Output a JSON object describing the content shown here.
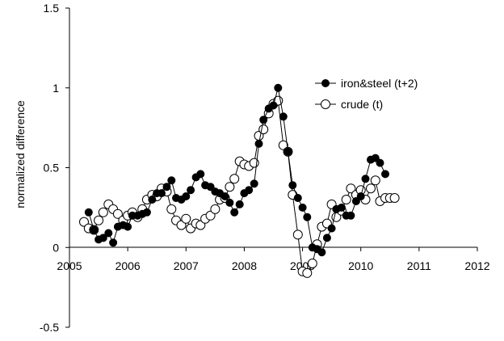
{
  "chart_data": {
    "type": "line",
    "title": "",
    "xlabel": "",
    "ylabel": "normalized difference",
    "xlim": [
      2005,
      2012
    ],
    "ylim": [
      -0.5,
      1.5
    ],
    "x_ticks": [
      "2005",
      "2006",
      "2007",
      "2008",
      "2009",
      "2010",
      "2011",
      "2012"
    ],
    "y_ticks": [
      "-0.5",
      "0",
      "0.5",
      "1",
      "1.5"
    ],
    "grid": false,
    "legend_position": "top-right",
    "colors": {
      "axis": "#000000",
      "series_line": "#000000",
      "marker_fill_filled": "#000000",
      "marker_fill_open": "#ffffff"
    },
    "series": [
      {
        "name": "iron&steel (t+2)",
        "marker": "filled-circle",
        "x": [
          2005.33,
          2005.42,
          2005.5,
          2005.58,
          2005.67,
          2005.75,
          2005.83,
          2005.92,
          2006.0,
          2006.08,
          2006.17,
          2006.25,
          2006.33,
          2006.42,
          2006.5,
          2006.58,
          2006.67,
          2006.75,
          2006.83,
          2006.92,
          2007.0,
          2007.08,
          2007.17,
          2007.25,
          2007.33,
          2007.42,
          2007.5,
          2007.58,
          2007.67,
          2007.75,
          2007.83,
          2007.92,
          2008.0,
          2008.08,
          2008.17,
          2008.25,
          2008.33,
          2008.42,
          2008.5,
          2008.58,
          2008.67,
          2008.75,
          2008.83,
          2008.92,
          2009.0,
          2009.08,
          2009.17,
          2009.25,
          2009.33,
          2009.42,
          2009.5,
          2009.58,
          2009.67,
          2009.75,
          2009.83,
          2009.92,
          2010.0,
          2010.08,
          2010.17,
          2010.25,
          2010.33,
          2010.42
        ],
        "y": [
          0.22,
          0.11,
          0.05,
          0.06,
          0.09,
          0.03,
          0.13,
          0.14,
          0.13,
          0.2,
          0.2,
          0.21,
          0.22,
          0.3,
          0.34,
          0.34,
          0.38,
          0.42,
          0.31,
          0.3,
          0.32,
          0.36,
          0.44,
          0.46,
          0.39,
          0.38,
          0.35,
          0.34,
          0.32,
          0.28,
          0.22,
          0.27,
          0.34,
          0.36,
          0.4,
          0.65,
          0.8,
          0.87,
          0.89,
          1.0,
          0.82,
          0.6,
          0.39,
          0.31,
          0.25,
          0.19,
          0.0,
          -0.01,
          -0.03,
          0.06,
          0.12,
          0.24,
          0.25,
          0.2,
          0.2,
          0.29,
          0.32,
          0.43,
          0.55,
          0.56,
          0.53,
          0.46
        ]
      },
      {
        "name": "crude (t)",
        "marker": "open-circle",
        "x": [
          2005.25,
          2005.33,
          2005.42,
          2005.5,
          2005.58,
          2005.67,
          2005.75,
          2005.83,
          2005.92,
          2006.0,
          2006.08,
          2006.17,
          2006.25,
          2006.33,
          2006.42,
          2006.5,
          2006.58,
          2006.67,
          2006.75,
          2006.83,
          2006.92,
          2007.0,
          2007.08,
          2007.17,
          2007.25,
          2007.33,
          2007.42,
          2007.5,
          2007.58,
          2007.67,
          2007.75,
          2007.83,
          2007.92,
          2008.0,
          2008.08,
          2008.17,
          2008.25,
          2008.33,
          2008.42,
          2008.5,
          2008.58,
          2008.67,
          2008.75,
          2008.83,
          2008.92,
          2009.0,
          2009.08,
          2009.17,
          2009.25,
          2009.33,
          2009.42,
          2009.5,
          2009.58,
          2009.67,
          2009.75,
          2009.83,
          2009.92,
          2010.0,
          2010.08,
          2010.17,
          2010.25,
          2010.33,
          2010.42,
          2010.5,
          2010.58
        ],
        "y": [
          0.16,
          0.12,
          0.11,
          0.17,
          0.22,
          0.27,
          0.24,
          0.21,
          0.17,
          0.2,
          0.22,
          0.19,
          0.24,
          0.3,
          0.33,
          0.32,
          0.37,
          0.35,
          0.24,
          0.17,
          0.14,
          0.18,
          0.12,
          0.15,
          0.14,
          0.18,
          0.2,
          0.24,
          0.3,
          0.31,
          0.38,
          0.43,
          0.54,
          0.52,
          0.51,
          0.53,
          0.7,
          0.74,
          0.84,
          0.9,
          0.92,
          0.64,
          0.6,
          0.33,
          0.08,
          -0.15,
          -0.16,
          -0.1,
          0.02,
          0.13,
          0.15,
          0.27,
          0.19,
          0.23,
          0.3,
          0.37,
          0.33,
          0.36,
          0.3,
          0.37,
          0.42,
          0.29,
          0.31,
          0.31,
          0.31
        ]
      }
    ]
  }
}
